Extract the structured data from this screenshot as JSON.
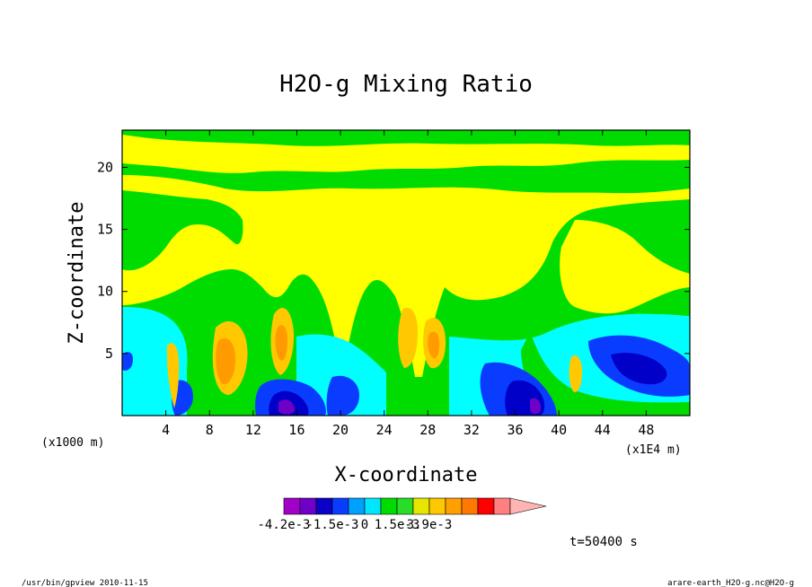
{
  "chart_data": {
    "type": "heatmap",
    "title": "H2O-g Mixing Ratio",
    "xlabel": "X-coordinate",
    "ylabel": "Z-coordinate",
    "x_unit_left": "(x1000 m)",
    "x_unit_right": "(x1E4 m)",
    "xlim": [
      0,
      52
    ],
    "ylim": [
      0,
      23
    ],
    "x_ticks": [
      4,
      8,
      12,
      16,
      20,
      24,
      28,
      32,
      36,
      40,
      44,
      48
    ],
    "y_ticks": [
      5,
      10,
      15,
      20
    ],
    "colorbar": {
      "colors": [
        "#a000c8",
        "#6e00c8",
        "#0a00c8",
        "#0a3cff",
        "#00a0ff",
        "#00e6ff",
        "#00dc00",
        "#28dc28",
        "#e6e600",
        "#ffc800",
        "#ffa000",
        "#ff7800",
        "#ff0000",
        "#ff8080",
        "#ffb4b4"
      ],
      "labels": [
        "-4.2e-3",
        "-1.5e-3",
        "0",
        "1.5e-3",
        "3.9e-3"
      ],
      "label_boundaries": [
        0,
        3,
        5,
        7,
        9
      ]
    },
    "background_level": "#00dc00",
    "time_label": "t=50400 s"
  },
  "footer": {
    "left": "/usr/bin/gpview  2010-11-15",
    "right": "arare-earth_H2O-g.nc@H2O-g"
  },
  "colors": {
    "yellow": "#ffff00",
    "green": "#00dc00",
    "cyan": "#00ffff",
    "blue": "#0a3cff",
    "darkblue": "#0000c8",
    "purple": "#6e00c8",
    "orange": "#ff9a00",
    "lightorange": "#ffc800"
  }
}
